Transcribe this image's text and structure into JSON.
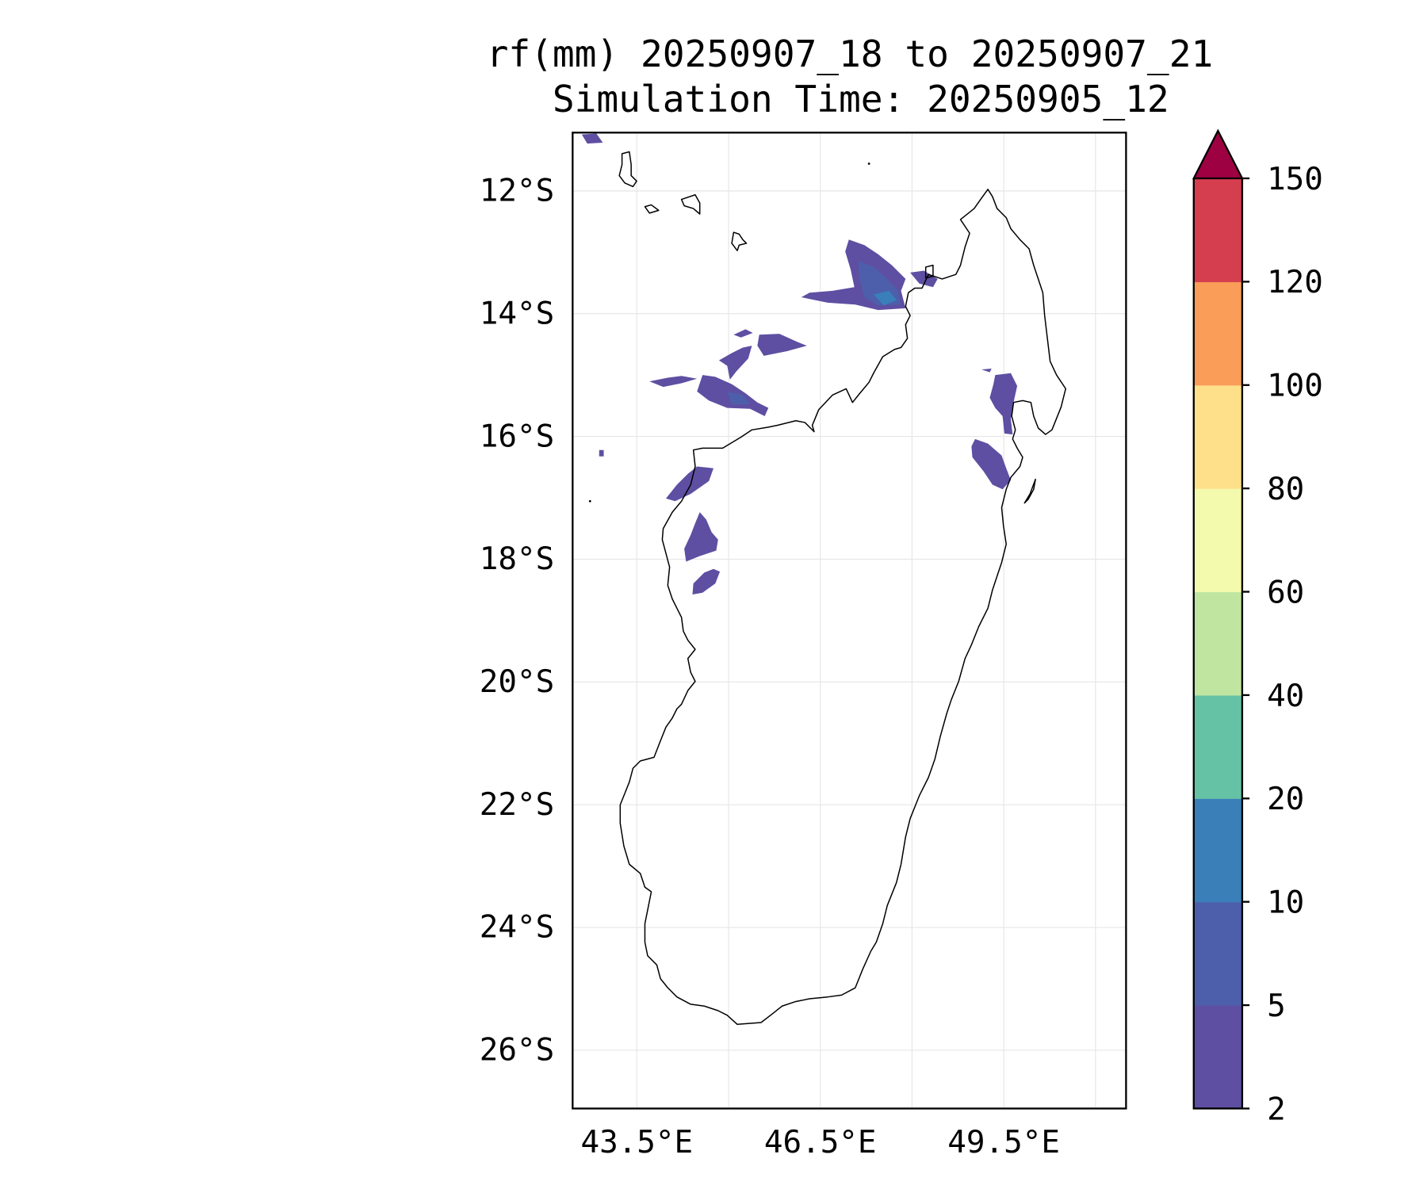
{
  "chart_data": {
    "type": "heatmap",
    "title_line1": "rf(mm) 20250907_18 to 20250907_21",
    "title_line2": "Simulation Time: 20250905_12",
    "variable": "rf(mm)",
    "x_ticks": [
      {
        "value": 43.5,
        "label": "43.5°E"
      },
      {
        "value": 46.5,
        "label": "46.5°E"
      },
      {
        "value": 49.5,
        "label": "49.5°E"
      }
    ],
    "y_ticks": [
      {
        "value": -12,
        "label": "12°S"
      },
      {
        "value": -14,
        "label": "14°S"
      },
      {
        "value": -16,
        "label": "16°S"
      },
      {
        "value": -18,
        "label": "18°S"
      },
      {
        "value": -20,
        "label": "20°S"
      },
      {
        "value": -22,
        "label": "22°S"
      },
      {
        "value": -24,
        "label": "24°S"
      },
      {
        "value": -26,
        "label": "26°S"
      }
    ],
    "xlim": [
      42.45,
      51.5
    ],
    "ylim": [
      -26.95,
      -11.05
    ],
    "grid": true,
    "colorbar": {
      "levels": [
        "2",
        "5",
        "10",
        "20",
        "40",
        "60",
        "80",
        "100",
        "120",
        "150"
      ],
      "colors": [
        "#5e4fa2",
        "#4d5fab",
        "#3a7fb8",
        "#66c2a5",
        "#bfe5a0",
        "#f3faad",
        "#fee08b",
        "#f99d59",
        "#d53e4f"
      ],
      "extend_color": "#9e0142",
      "extend": "max",
      "placement": "right"
    },
    "rain_regions": [
      {
        "area": "NW offshore of Nosy Be",
        "max_class": "10-20"
      },
      {
        "area": "Mozambique Channel NW of Mahajanga",
        "max_class": "5-10"
      },
      {
        "area": "West coast offshore 16.5-18.5S",
        "max_class": "2-5"
      },
      {
        "area": "NE coast near Antongil Bay",
        "max_class": "2-5"
      }
    ]
  }
}
